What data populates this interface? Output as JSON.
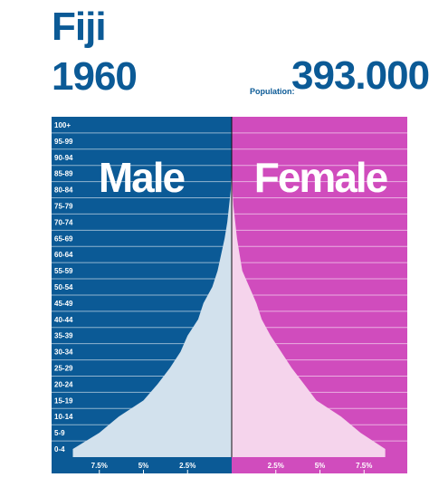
{
  "header": {
    "country": "Fiji",
    "year": "1960",
    "population_label": "Population:",
    "population_value": "393.000"
  },
  "chart_data": {
    "type": "bar",
    "orientation": "horizontal",
    "subtype": "population-pyramid",
    "categories": [
      "0-4",
      "5-9",
      "10-14",
      "15-19",
      "20-24",
      "25-29",
      "30-34",
      "35-39",
      "40-44",
      "45-49",
      "50-54",
      "55-59",
      "60-64",
      "65-69",
      "70-74",
      "75-79",
      "80-84",
      "85-89",
      "90-94",
      "95-99",
      "100+"
    ],
    "series": [
      {
        "name": "Male",
        "values": [
          9.0,
          7.5,
          6.4,
          5.0,
          4.2,
          3.5,
          2.9,
          2.5,
          1.9,
          1.6,
          1.1,
          0.8,
          0.6,
          0.4,
          0.25,
          0.15,
          0.05,
          0.02,
          0.01,
          0.0,
          0.0
        ]
      },
      {
        "name": "Female",
        "values": [
          8.7,
          7.3,
          6.2,
          4.8,
          4.1,
          3.4,
          2.8,
          2.2,
          1.7,
          1.4,
          1.0,
          0.6,
          0.45,
          0.3,
          0.2,
          0.1,
          0.04,
          0.02,
          0.01,
          0.0,
          0.0
        ]
      }
    ],
    "x_ticks": [
      "7.5%",
      "5%",
      "2.5%",
      "2.5%",
      "5%",
      "7.5%"
    ],
    "xlim": [
      0,
      10
    ],
    "grid": true,
    "colors": {
      "male_bg": "#0b5a96",
      "female_bg": "#d04cbd",
      "male_fill": "#d2e1ed",
      "female_fill": "#f5d4ec"
    }
  }
}
